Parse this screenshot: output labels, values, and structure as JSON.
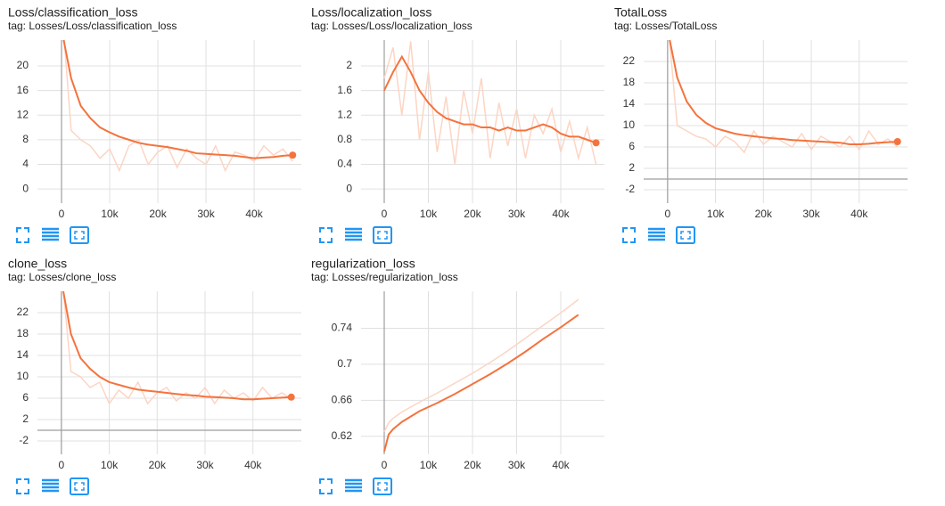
{
  "chart_data": [
    {
      "type": "line",
      "title": "Loss/classification_loss",
      "subtitle": "tag: Losses/Loss/classification_loss",
      "x": [
        0,
        2000,
        4000,
        6000,
        8000,
        10000,
        12000,
        14000,
        16000,
        18000,
        20000,
        22000,
        24000,
        26000,
        28000,
        30000,
        32000,
        34000,
        36000,
        38000,
        40000,
        42000,
        44000,
        46000,
        48000
      ],
      "series": [
        {
          "color": "#fcd5c4",
          "values": [
            30,
            9.5,
            8,
            7,
            5,
            6.5,
            3,
            7,
            8,
            4,
            6,
            7,
            3.5,
            6.5,
            5,
            4,
            7,
            3,
            6,
            5.5,
            4.5,
            7,
            5.5,
            6.5,
            4.5
          ]
        },
        {
          "color": "#f4733d",
          "values": [
            26,
            18,
            13.5,
            11.5,
            10,
            9.2,
            8.5,
            8,
            7.5,
            7.2,
            7,
            6.8,
            6.5,
            6.2,
            5.8,
            5.7,
            5.6,
            5.5,
            5.4,
            5.2,
            5,
            5.1,
            5.2,
            5.4,
            5.5
          ],
          "marker_last": true
        }
      ],
      "xlim": [
        -5000,
        49800
      ],
      "ylim": [
        -2.3,
        24.2
      ],
      "xticks": [
        0,
        {
          "value": 10000,
          "label": "10k"
        },
        {
          "value": 20000,
          "label": "20k"
        },
        {
          "value": 30000,
          "label": "30k"
        },
        {
          "value": 40000,
          "label": "40k"
        }
      ],
      "yticks": [
        0,
        4,
        8,
        12,
        16,
        20
      ],
      "grid": true
    },
    {
      "type": "line",
      "title": "Loss/localization_loss",
      "subtitle": "tag: Losses/Loss/localization_loss",
      "x": [
        0,
        2000,
        4000,
        6000,
        8000,
        10000,
        12000,
        14000,
        16000,
        18000,
        20000,
        22000,
        24000,
        26000,
        28000,
        30000,
        32000,
        34000,
        36000,
        38000,
        40000,
        42000,
        44000,
        46000,
        48000
      ],
      "series": [
        {
          "color": "#fcd5c4",
          "values": [
            1.8,
            2.3,
            1.2,
            2.4,
            0.8,
            1.9,
            0.6,
            1.5,
            0.4,
            1.6,
            0.9,
            1.8,
            0.5,
            1.4,
            0.7,
            1.3,
            0.5,
            1.2,
            0.9,
            1.3,
            0.6,
            1.1,
            0.5,
            1,
            0.4
          ]
        },
        {
          "color": "#f4733d",
          "values": [
            1.6,
            1.9,
            2.15,
            1.9,
            1.6,
            1.4,
            1.25,
            1.15,
            1.1,
            1.05,
            1.05,
            1,
            1,
            0.95,
            1,
            0.95,
            0.95,
            1,
            1.05,
            1,
            0.9,
            0.85,
            0.85,
            0.8,
            0.75
          ],
          "marker_last": true
        }
      ],
      "xlim": [
        -5250,
        49900
      ],
      "ylim": [
        -0.23,
        2.42
      ],
      "xticks": [
        0,
        {
          "value": 10000,
          "label": "10k"
        },
        {
          "value": 20000,
          "label": "20k"
        },
        {
          "value": 30000,
          "label": "30k"
        },
        {
          "value": 40000,
          "label": "40k"
        }
      ],
      "yticks": [
        0,
        0.4,
        0.8,
        1.2,
        1.6,
        2
      ],
      "grid": true
    },
    {
      "type": "line",
      "title": "TotalLoss",
      "subtitle": "tag: Losses/TotalLoss",
      "x": [
        0,
        2000,
        4000,
        6000,
        8000,
        10000,
        12000,
        14000,
        16000,
        18000,
        20000,
        22000,
        24000,
        26000,
        28000,
        30000,
        32000,
        34000,
        36000,
        38000,
        40000,
        42000,
        44000,
        46000,
        48000
      ],
      "series": [
        {
          "color": "#fcd5c4",
          "values": [
            30,
            10,
            9,
            8,
            7.5,
            6,
            8,
            7,
            5,
            9,
            6.5,
            8,
            7,
            6,
            8.5,
            5.5,
            8,
            7,
            6,
            8,
            5.5,
            9,
            6.5,
            7.5,
            6
          ]
        },
        {
          "color": "#f4733d",
          "values": [
            28,
            19,
            14.5,
            12,
            10.5,
            9.5,
            9,
            8.5,
            8.2,
            8,
            7.8,
            7.6,
            7.5,
            7.3,
            7.2,
            7.1,
            7,
            6.9,
            6.8,
            6.5,
            6.5,
            6.6,
            6.8,
            6.9,
            7
          ],
          "marker_last": true
        }
      ],
      "xlim": [
        -5000,
        50100
      ],
      "ylim": [
        -4.5,
        26
      ],
      "xticks": [
        0,
        {
          "value": 10000,
          "label": "10k"
        },
        {
          "value": 20000,
          "label": "20k"
        },
        {
          "value": 30000,
          "label": "30k"
        },
        {
          "value": 40000,
          "label": "40k"
        }
      ],
      "yticks": [
        -2,
        2,
        6,
        10,
        14,
        18,
        22
      ],
      "grid": true
    },
    {
      "type": "line",
      "title": "clone_loss",
      "subtitle": "tag: Losses/clone_loss",
      "x": [
        0,
        2000,
        4000,
        6000,
        8000,
        10000,
        12000,
        14000,
        16000,
        18000,
        20000,
        22000,
        24000,
        26000,
        28000,
        30000,
        32000,
        34000,
        36000,
        38000,
        40000,
        42000,
        44000,
        46000,
        48000
      ],
      "series": [
        {
          "color": "#fcd5c4",
          "values": [
            30,
            11,
            10,
            8,
            9,
            5,
            7.5,
            6,
            9,
            5,
            7,
            8,
            5.5,
            7,
            6,
            8,
            5,
            7.5,
            6,
            7,
            5.5,
            8,
            6,
            7,
            6
          ]
        },
        {
          "color": "#f4733d",
          "values": [
            28,
            18,
            13.5,
            11.5,
            10,
            9,
            8.5,
            8,
            7.6,
            7.4,
            7.2,
            7,
            6.8,
            6.6,
            6.5,
            6.3,
            6.2,
            6.1,
            6,
            5.8,
            5.8,
            5.9,
            6,
            6.1,
            6.2
          ],
          "marker_last": true
        }
      ],
      "xlim": [
        -5000,
        50100
      ],
      "ylim": [
        -4.5,
        26
      ],
      "xticks": [
        0,
        {
          "value": 10000,
          "label": "10k"
        },
        {
          "value": 20000,
          "label": "20k"
        },
        {
          "value": 30000,
          "label": "30k"
        },
        {
          "value": 40000,
          "label": "40k"
        }
      ],
      "yticks": [
        -2,
        2,
        6,
        10,
        14,
        18,
        22
      ],
      "grid": true
    },
    {
      "type": "line",
      "title": "regularization_loss",
      "subtitle": "tag: Losses/regularization_loss",
      "x": [
        0,
        1000,
        2000,
        4000,
        8000,
        12000,
        16000,
        20000,
        24000,
        28000,
        32000,
        36000,
        40000,
        44000
      ],
      "series": [
        {
          "color": "#fcd5c4",
          "values": [
            0.625,
            0.635,
            0.64,
            0.647,
            0.658,
            0.668,
            0.679,
            0.69,
            0.702,
            0.715,
            0.729,
            0.743,
            0.757,
            0.772
          ]
        },
        {
          "color": "#f4733d",
          "values": [
            0.603,
            0.622,
            0.628,
            0.636,
            0.648,
            0.657,
            0.667,
            0.678,
            0.689,
            0.701,
            0.714,
            0.728,
            0.741,
            0.755
          ]
        }
      ],
      "xlim": [
        -5250,
        49900
      ],
      "ylim": [
        0.6,
        0.781
      ],
      "xticks": [
        0,
        {
          "value": 10000,
          "label": "10k"
        },
        {
          "value": 20000,
          "label": "20k"
        },
        {
          "value": 30000,
          "label": "30k"
        },
        {
          "value": 40000,
          "label": "40k"
        }
      ],
      "yticks": [
        0.62,
        0.66,
        0.7,
        0.74
      ],
      "grid": true
    }
  ]
}
